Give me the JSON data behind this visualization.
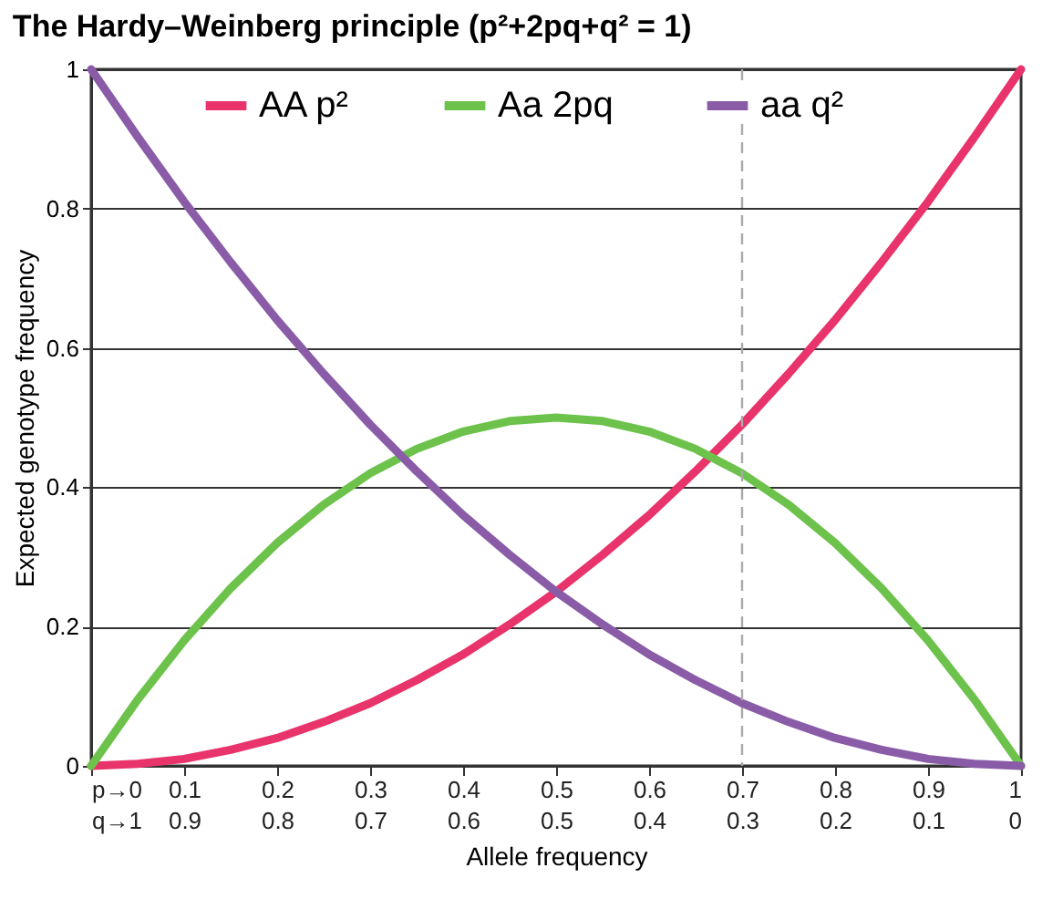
{
  "chart_data": {
    "type": "line",
    "title": "The Hardy–Weinberg principle (p²+2pq+q² = 1)",
    "xlabel": "Allele frequency",
    "ylabel": "Expected genotype frequency",
    "x": [
      0,
      0.05,
      0.1,
      0.15,
      0.2,
      0.25,
      0.3,
      0.35,
      0.4,
      0.45,
      0.5,
      0.55,
      0.6,
      0.65,
      0.7,
      0.75,
      0.8,
      0.85,
      0.9,
      0.95,
      1
    ],
    "series": [
      {
        "name": "AA p²",
        "color": "#e8336b",
        "values": [
          0,
          0.003,
          0.01,
          0.023,
          0.04,
          0.063,
          0.09,
          0.123,
          0.16,
          0.203,
          0.25,
          0.303,
          0.36,
          0.423,
          0.49,
          0.563,
          0.64,
          0.723,
          0.81,
          0.903,
          1
        ]
      },
      {
        "name": "Aa 2pq",
        "color": "#6cc24a",
        "values": [
          0,
          0.095,
          0.18,
          0.255,
          0.32,
          0.375,
          0.42,
          0.455,
          0.48,
          0.495,
          0.5,
          0.495,
          0.48,
          0.455,
          0.42,
          0.375,
          0.32,
          0.255,
          0.18,
          0.095,
          0
        ]
      },
      {
        "name": "aa q²",
        "color": "#8a5ca8",
        "values": [
          1,
          0.903,
          0.81,
          0.723,
          0.64,
          0.563,
          0.49,
          0.423,
          0.36,
          0.303,
          0.25,
          0.203,
          0.16,
          0.123,
          0.09,
          0.063,
          0.04,
          0.023,
          0.01,
          0.003,
          0
        ]
      }
    ],
    "xlim": [
      0,
      1
    ],
    "ylim": [
      0,
      1
    ],
    "xticks": [
      {
        "value": 0,
        "label": "p→0"
      },
      0.1,
      0.2,
      0.3,
      0.4,
      0.5,
      0.6,
      0.7,
      0.8,
      0.9,
      1
    ],
    "x2lim": [
      1,
      0
    ],
    "x2ticks": [
      {
        "value": 1,
        "label": "q→1"
      },
      0.9,
      0.8,
      0.7,
      0.6,
      0.5,
      0.4,
      0.3,
      0.2,
      0.1,
      0
    ],
    "yticks": [
      0,
      0.2,
      0.4,
      0.6,
      0.8,
      1
    ],
    "ref_lines": [
      {
        "axis": "x",
        "value": 0.7,
        "color": "#aaaaaa",
        "line_style": "dashed"
      }
    ],
    "grid": "y",
    "legend": "top",
    "marker": "none",
    "line_style": "solid"
  }
}
